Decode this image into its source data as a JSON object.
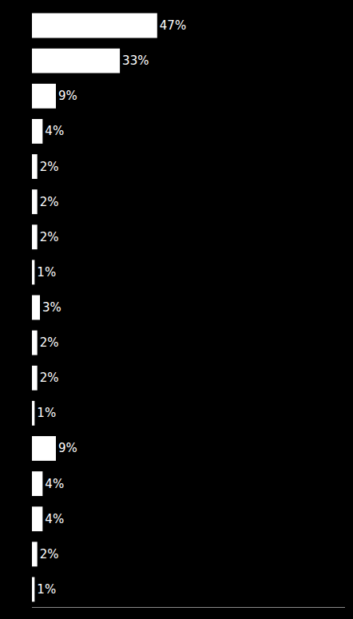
{
  "chart_data": {
    "type": "bar",
    "orientation": "horizontal",
    "categories": [
      null,
      null,
      null,
      null,
      null,
      null,
      null,
      null,
      null,
      null,
      null,
      null,
      null,
      null,
      null,
      null,
      null
    ],
    "values": [
      47,
      33,
      9,
      4,
      2,
      2,
      2,
      1,
      3,
      2,
      2,
      1,
      9,
      4,
      4,
      2,
      1
    ],
    "value_labels": [
      "47%",
      "33%",
      "9%",
      "4%",
      "2%",
      "2%",
      "2%",
      "1%",
      "3%",
      "2%",
      "2%",
      "1%",
      "9%",
      "4%",
      "4%",
      "2%",
      "1%"
    ],
    "data_labels": true,
    "color": "#ffffff",
    "xlim": [
      0,
      117.5
    ],
    "grid": false,
    "tick_labels": false
  }
}
